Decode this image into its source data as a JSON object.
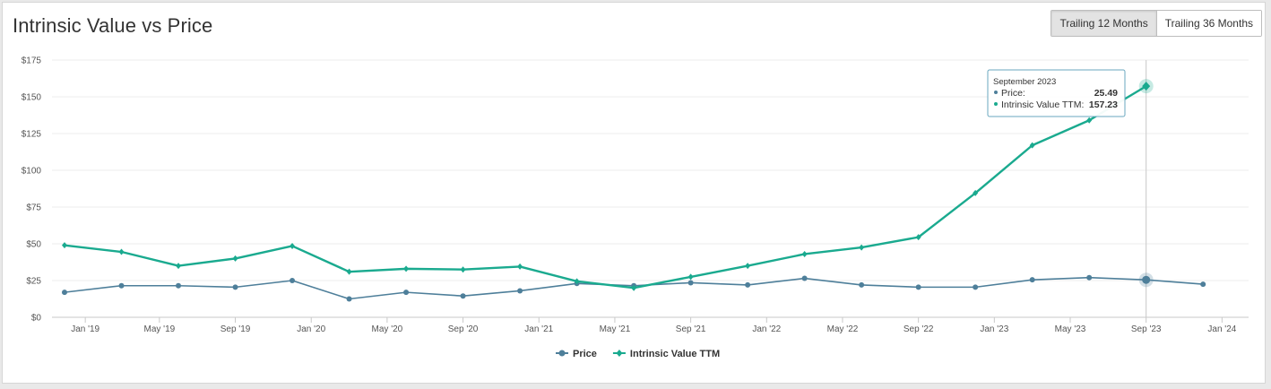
{
  "title": "Intrinsic Value vs Price",
  "toggle": {
    "trailing_12_label": "Trailing 12 Months",
    "trailing_36_label": "Trailing 36 Months",
    "active": "trailing_12"
  },
  "tooltip": {
    "date": "September 2023",
    "price_label": "Price:",
    "price_value": "25.49",
    "iv_label": "Intrinsic Value TTM:",
    "iv_value": "157.23"
  },
  "chart_data": {
    "type": "line",
    "x_tick_labels": [
      "Jan '19",
      "May '19",
      "Sep '19",
      "Jan '20",
      "May '20",
      "Sep '20",
      "Jan '21",
      "May '21",
      "Sep '21",
      "Jan '22",
      "May '22",
      "Sep '22",
      "Jan '23",
      "May '23",
      "Sep '23",
      "Jan '24"
    ],
    "y_tick_labels": [
      "$0",
      "$25",
      "$50",
      "$75",
      "$100",
      "$125",
      "$150",
      "$175"
    ],
    "ylim": [
      0,
      175
    ],
    "ytick_step": 25,
    "grid": true,
    "legend_position": "bottom-center",
    "series": [
      {
        "name": "Price",
        "color": "#4e7f9a",
        "marker": "circle",
        "points": [
          {
            "x": "2018-12",
            "y": 17
          },
          {
            "x": "2019-03",
            "y": 21.5
          },
          {
            "x": "2019-06",
            "y": 21.5
          },
          {
            "x": "2019-09",
            "y": 20.5
          },
          {
            "x": "2019-12",
            "y": 25
          },
          {
            "x": "2020-03",
            "y": 12.5
          },
          {
            "x": "2020-06",
            "y": 17
          },
          {
            "x": "2020-09",
            "y": 14.5
          },
          {
            "x": "2020-12",
            "y": 18
          },
          {
            "x": "2021-03",
            "y": 23
          },
          {
            "x": "2021-06",
            "y": 21.5
          },
          {
            "x": "2021-09",
            "y": 23.5
          },
          {
            "x": "2021-12",
            "y": 22
          },
          {
            "x": "2022-03",
            "y": 26.5
          },
          {
            "x": "2022-06",
            "y": 22
          },
          {
            "x": "2022-09",
            "y": 20.5
          },
          {
            "x": "2022-12",
            "y": 20.5
          },
          {
            "x": "2023-03",
            "y": 25.5
          },
          {
            "x": "2023-06",
            "y": 27
          },
          {
            "x": "2023-09",
            "y": 25.49
          },
          {
            "x": "2023-12",
            "y": 22.5
          }
        ]
      },
      {
        "name": "Intrinsic Value TTM",
        "color": "#1aaa8f",
        "marker": "diamond",
        "points": [
          {
            "x": "2018-12",
            "y": 49
          },
          {
            "x": "2019-03",
            "y": 44.5
          },
          {
            "x": "2019-06",
            "y": 35
          },
          {
            "x": "2019-09",
            "y": 40
          },
          {
            "x": "2019-12",
            "y": 48.5
          },
          {
            "x": "2020-03",
            "y": 31
          },
          {
            "x": "2020-06",
            "y": 33
          },
          {
            "x": "2020-09",
            "y": 32.5
          },
          {
            "x": "2020-12",
            "y": 34.5
          },
          {
            "x": "2021-03",
            "y": 24.5
          },
          {
            "x": "2021-06",
            "y": 20
          },
          {
            "x": "2021-09",
            "y": 27.5
          },
          {
            "x": "2021-12",
            "y": 35
          },
          {
            "x": "2022-03",
            "y": 43
          },
          {
            "x": "2022-06",
            "y": 47.5
          },
          {
            "x": "2022-09",
            "y": 54.5
          },
          {
            "x": "2022-12",
            "y": 84.5
          },
          {
            "x": "2023-03",
            "y": 117
          },
          {
            "x": "2023-06",
            "y": 134
          },
          {
            "x": "2023-09",
            "y": 157.23
          }
        ]
      }
    ],
    "highlight_x": "2023-09"
  }
}
